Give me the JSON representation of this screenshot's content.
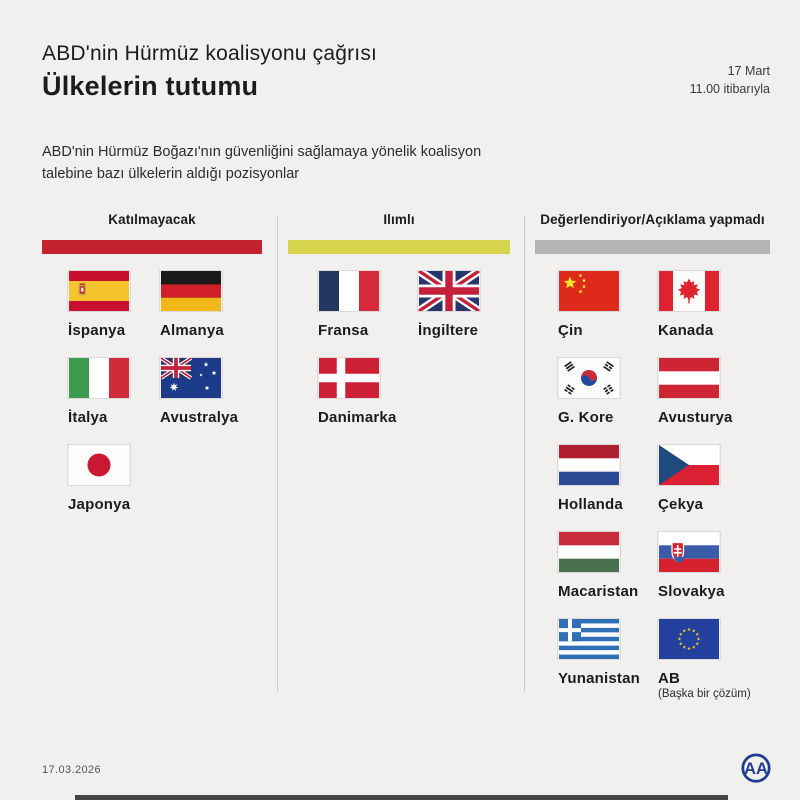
{
  "header": {
    "title": "ABD'nin Hürmüz koalisyonu çağrısı",
    "subtitle": "Ülkelerin tutumu",
    "timestamp_line1": "17 Mart",
    "timestamp_line2": "11.00 itibarıyla"
  },
  "description": "ABD'nin Hürmüz Boğazı'nın güvenliğini sağlamaya yönelik koalisyon talebine bazı ülkelerin aldığı pozisyonlar",
  "columns": [
    {
      "title": "Katılmayacak",
      "bar_color": "#c2232e",
      "countries": [
        {
          "name": "İspanya",
          "flag": "spain"
        },
        {
          "name": "Almanya",
          "flag": "germany"
        },
        {
          "name": "İtalya",
          "flag": "italy"
        },
        {
          "name": "Avustralya",
          "flag": "australia"
        },
        {
          "name": "Japonya",
          "flag": "japan"
        }
      ]
    },
    {
      "title": "Ilımlı",
      "bar_color": "#d7d54e",
      "countries": [
        {
          "name": "Fransa",
          "flag": "france"
        },
        {
          "name": "İngiltere",
          "flag": "uk"
        },
        {
          "name": "Danimarka",
          "flag": "denmark"
        }
      ]
    },
    {
      "title": "Değerlendiriyor/Açıklama yapmadı",
      "bar_color": "#b5b4b2",
      "countries": [
        {
          "name": "Çin",
          "flag": "china"
        },
        {
          "name": "Kanada",
          "flag": "canada"
        },
        {
          "name": "G. Kore",
          "flag": "south-korea"
        },
        {
          "name": "Avusturya",
          "flag": "austria"
        },
        {
          "name": "Hollanda",
          "flag": "netherlands"
        },
        {
          "name": "Çekya",
          "flag": "czechia"
        },
        {
          "name": "Macaristan",
          "flag": "hungary"
        },
        {
          "name": "Slovakya",
          "flag": "slovakia"
        },
        {
          "name": "Yunanistan",
          "flag": "greece"
        },
        {
          "name": "AB",
          "flag": "eu",
          "note": "(Başka bir çözüm)"
        }
      ]
    }
  ],
  "footer": {
    "date": "17.03.2026",
    "logo": "aa-logo"
  },
  "colors": {
    "background": "#f1f0ee",
    "text": "#1c1c1a",
    "bar_not_participating": "#c2232e",
    "bar_moderate": "#d7d54e",
    "bar_evaluating": "#b5b4b2",
    "divider": "#ccccca",
    "logo_blue": "#1d3c8f"
  }
}
